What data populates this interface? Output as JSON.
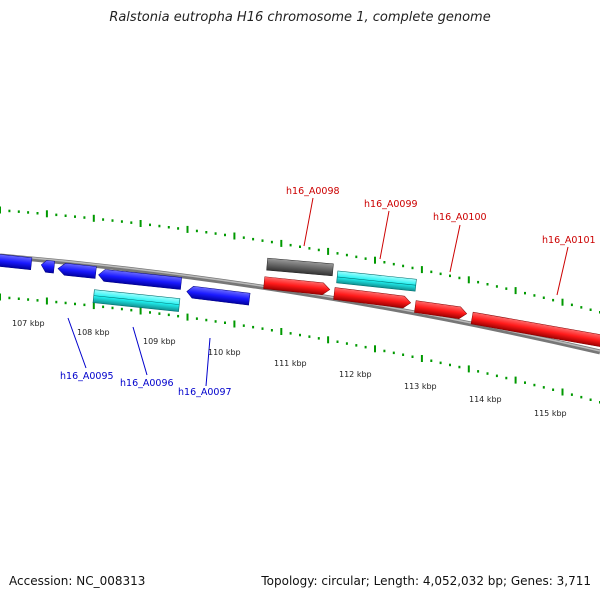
{
  "title": "Ralstonia eutropha H16 chromosome 1, complete genome",
  "footer": {
    "accession": "Accession: NC_008313",
    "stats": "Topology: circular; Length: 4,052,032 bp; Genes: 3,711"
  },
  "colors": {
    "backbone": "#888888",
    "minus_strand": "#1a1aff",
    "plus_strand": "#ff1a1a",
    "cyan_gene": "#20f0f0",
    "grey_gene": "#666666",
    "ticks": "#009900",
    "label_red": "#cc0000",
    "label_blue": "#0000cc"
  },
  "kbp_labels": [
    "107 kbp",
    "108 kbp",
    "109 kbp",
    "110 kbp",
    "111 kbp",
    "112 kbp",
    "113 kbp",
    "114 kbp",
    "115 kbp"
  ],
  "gene_labels_bottom": [
    "h16_A0095",
    "h16_A0096",
    "h16_A0097"
  ],
  "gene_labels_top": [
    "h16_A0098",
    "h16_A0099",
    "h16_A0100",
    "h16_A0101"
  ]
}
